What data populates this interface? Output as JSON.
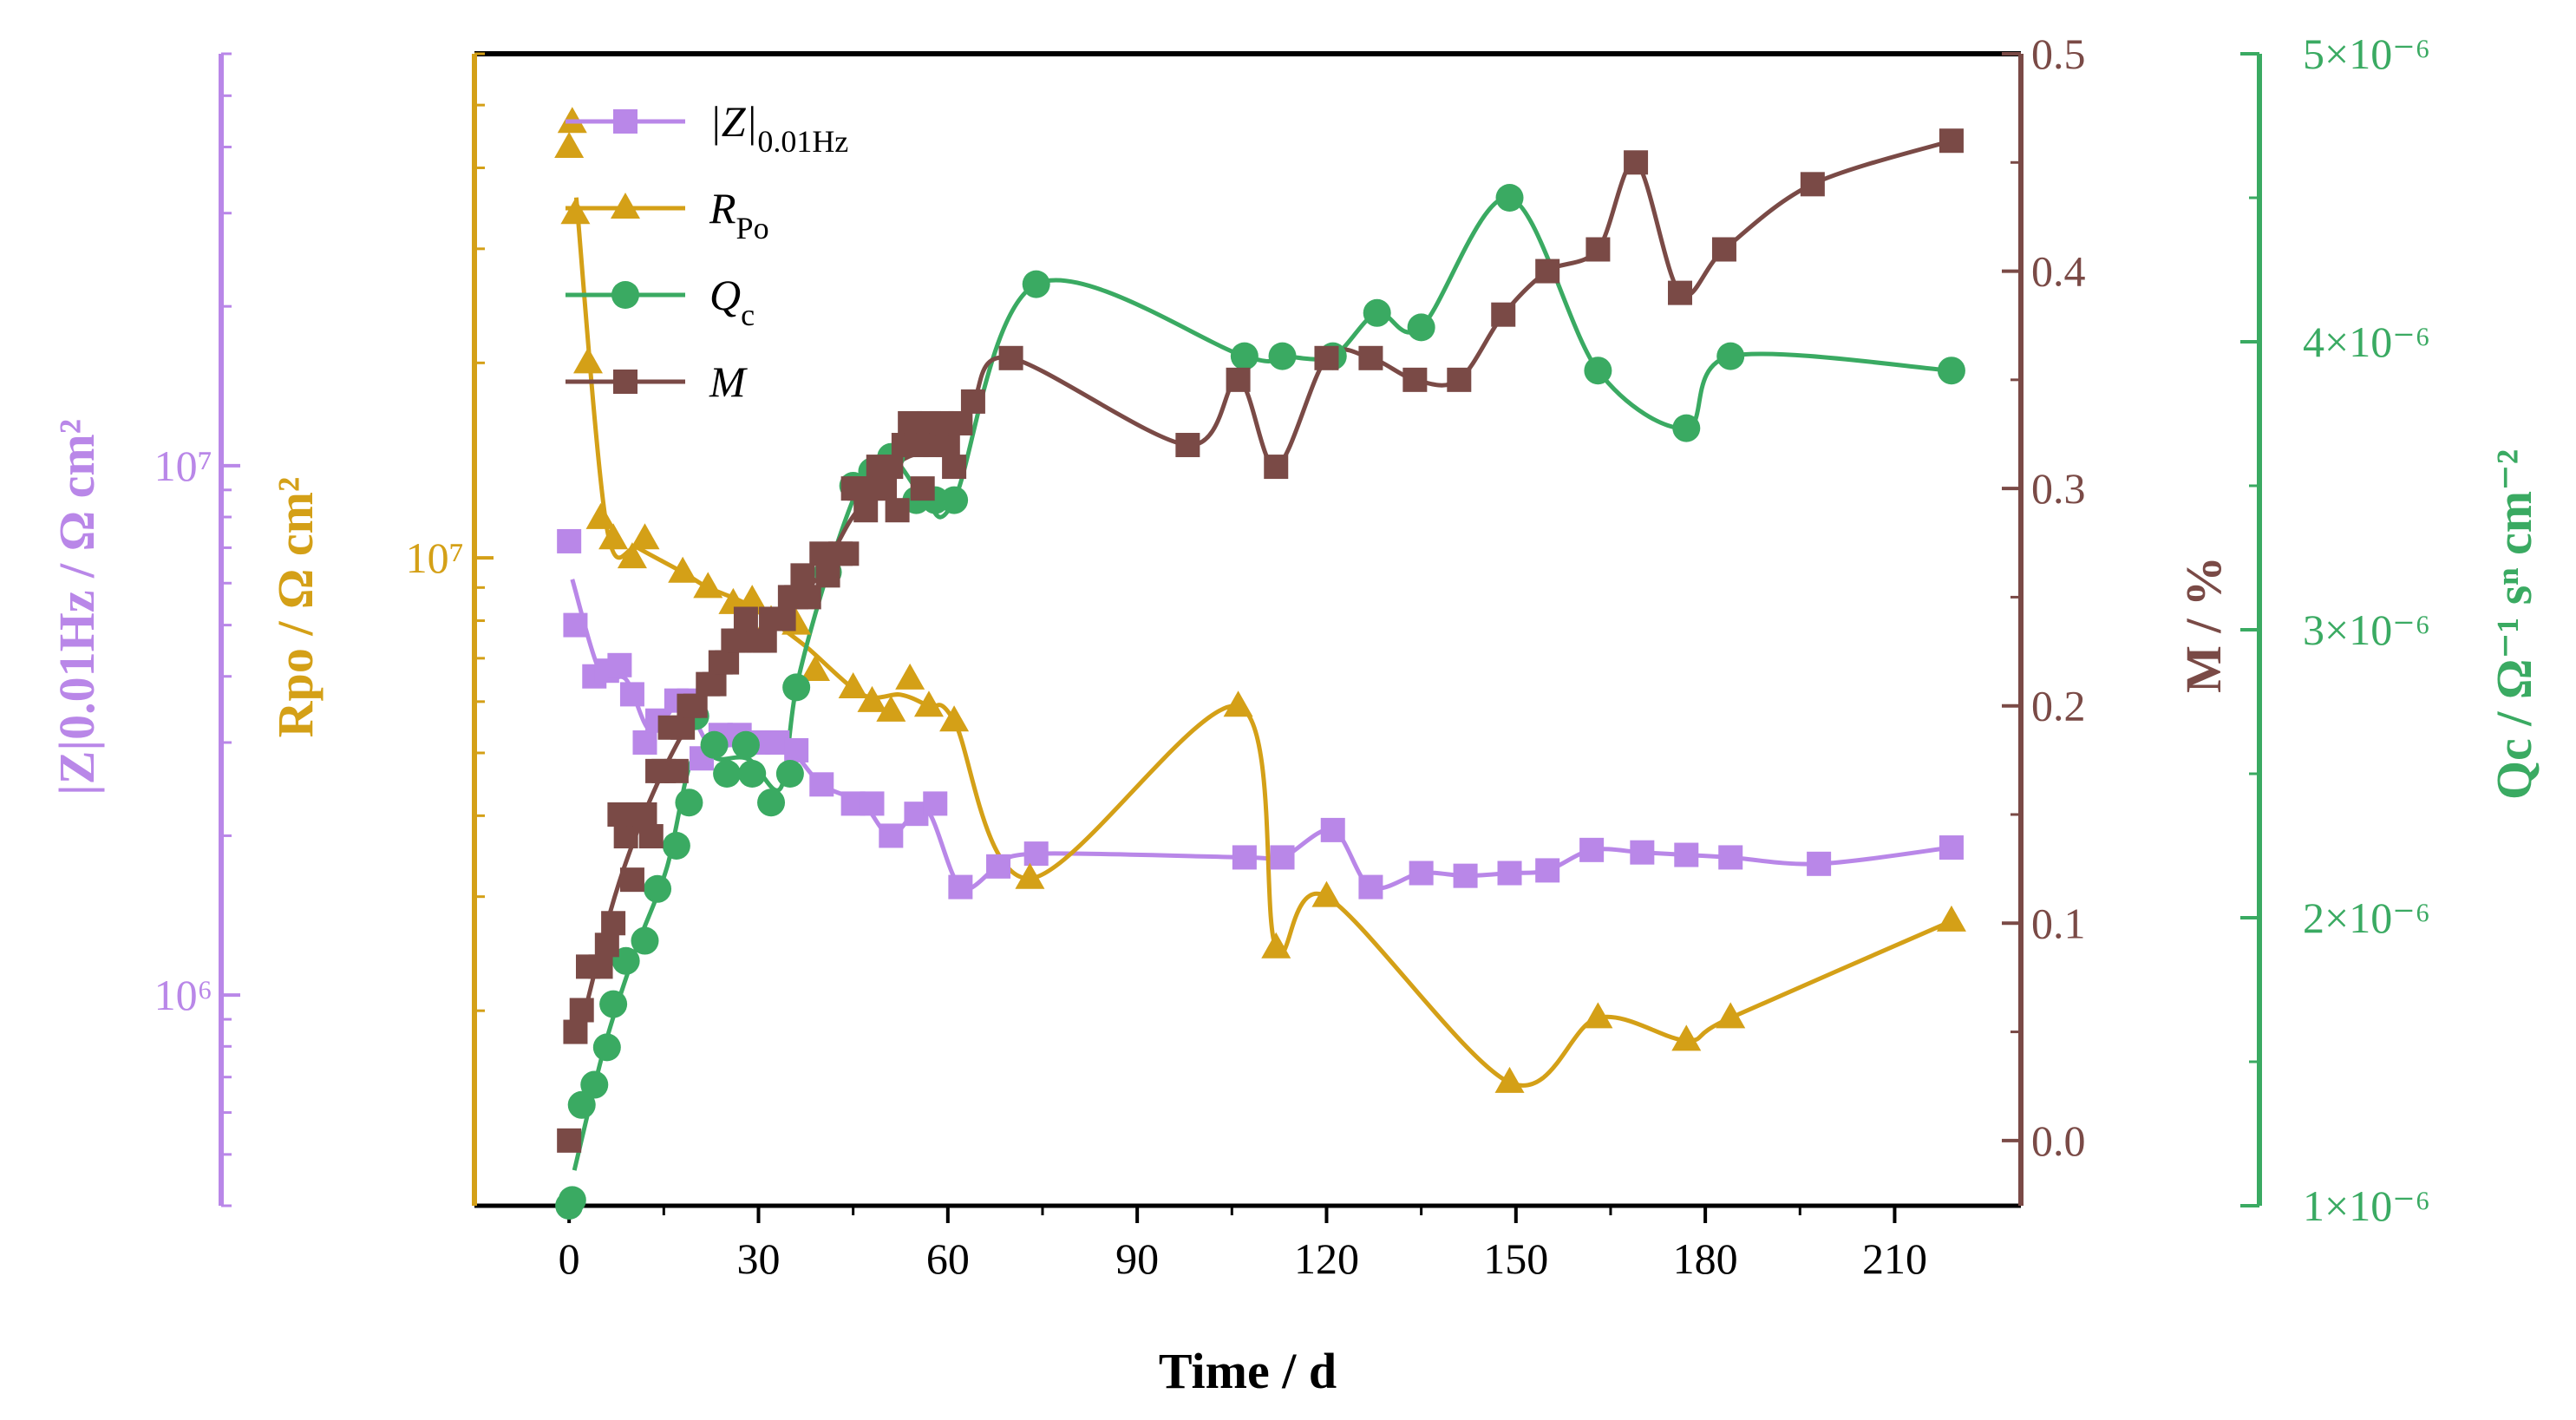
{
  "chart_data": {
    "type": "scatter",
    "xlabel": "Time / d",
    "xlim": [
      -15,
      230
    ],
    "xticks": [
      0,
      30,
      60,
      90,
      120,
      150,
      180,
      210
    ],
    "colors": {
      "Z": "#b987e8",
      "Rpo": "#d4a017",
      "Qc": "#3aaa62",
      "M": "#7a4a46"
    },
    "axes": {
      "Z": {
        "label": "|Z|0.01Hz / Ω cm²",
        "scale": "log",
        "ylim": [
          400000,
          60000000
        ],
        "major_ticks": [
          {
            "value": 1000000,
            "label": "10⁶"
          },
          {
            "value": 10000000,
            "label": "10⁷"
          }
        ]
      },
      "Rpo": {
        "label": "Rpo / Ω cm²",
        "scale": "log",
        "ylim": [
          1000000,
          60000000
        ],
        "major_ticks": [
          {
            "value": 10000000,
            "label": "10⁷"
          }
        ]
      },
      "M": {
        "label": "M / %",
        "scale": "linear",
        "ylim": [
          -0.03,
          0.5
        ],
        "major_ticks": [
          {
            "value": 0.0,
            "label": "0.0"
          },
          {
            "value": 0.1,
            "label": "0.1"
          },
          {
            "value": 0.2,
            "label": "0.2"
          },
          {
            "value": 0.3,
            "label": "0.3"
          },
          {
            "value": 0.4,
            "label": "0.4"
          },
          {
            "value": 0.5,
            "label": "0.5"
          }
        ]
      },
      "Qc": {
        "label": "Qc / Ω⁻¹ sⁿ cm⁻²",
        "scale": "linear",
        "ylim": [
          1e-06,
          5e-06
        ],
        "major_ticks": [
          {
            "value": 1e-06,
            "label": "1×10⁻⁶"
          },
          {
            "value": 2e-06,
            "label": "2×10⁻⁶"
          },
          {
            "value": 3e-06,
            "label": "3×10⁻⁶"
          },
          {
            "value": 4e-06,
            "label": "4×10⁻⁶"
          },
          {
            "value": 5e-06,
            "label": "5×10⁻⁶"
          }
        ]
      }
    },
    "legend": {
      "position": "top-left",
      "entries": [
        {
          "series": "Z",
          "main": "|Z|",
          "sub": "0.01Hz",
          "italic": "Z"
        },
        {
          "series": "Rpo",
          "main": "R",
          "sub": "Po"
        },
        {
          "series": "Qc",
          "main": "Q",
          "sub": "c"
        },
        {
          "series": "M",
          "main": "M",
          "sub": ""
        }
      ]
    },
    "series": [
      {
        "name": "|Z|0.01Hz",
        "key": "Z",
        "axis": "Z",
        "marker": "square",
        "x": [
          0,
          1,
          4,
          6,
          8,
          10,
          12,
          14,
          17,
          19,
          21,
          24,
          27,
          30,
          33,
          36,
          40,
          45,
          48,
          51,
          55,
          58,
          62,
          68,
          74,
          107,
          113,
          121,
          127,
          135,
          142,
          149,
          155,
          162,
          170,
          177,
          184,
          198,
          219
        ],
        "y": [
          7200000.0,
          5000000.0,
          4000000.0,
          4100000.0,
          4200000.0,
          3700000.0,
          3000000.0,
          3300000.0,
          3600000.0,
          3600000.0,
          2800000.0,
          3100000.0,
          3100000.0,
          3000000.0,
          3000000.0,
          2900000.0,
          2500000.0,
          2300000.0,
          2300000.0,
          2000000.0,
          2200000.0,
          2300000.0,
          1600000.0,
          1750000.0,
          1850000.0,
          1820000.0,
          1820000.0,
          2050000.0,
          1600000.0,
          1700000.0,
          1680000.0,
          1700000.0,
          1720000.0,
          1880000.0,
          1860000.0,
          1840000.0,
          1820000.0,
          1770000.0,
          1900000.0
        ]
      },
      {
        "name": "Rpo",
        "key": "Rpo",
        "axis": "Rpo",
        "marker": "triangle",
        "x": [
          0,
          0.5,
          1,
          3,
          5,
          7,
          10,
          12,
          18,
          22,
          26,
          29,
          32,
          36,
          39,
          45,
          48,
          51,
          54,
          57,
          61,
          73,
          106,
          112,
          120,
          149,
          163,
          177,
          184,
          219
        ],
        "y": [
          43000000.0,
          47000000.0,
          34000000.0,
          20000000.0,
          11500000.0,
          10700000.0,
          10000000.0,
          10700000.0,
          9500000.0,
          9000000.0,
          8500000.0,
          8600000.0,
          8000000.0,
          7900000.0,
          6700000.0,
          6300000.0,
          6000000.0,
          5800000.0,
          6500000.0,
          5900000.0,
          5600000.0,
          3200000.0,
          5900000.0,
          2500000.0,
          3000000.0,
          1550000.0,
          1950000.0,
          1800000.0,
          1950000.0,
          2750000.0
        ]
      },
      {
        "name": "Qc",
        "key": "Qc",
        "axis": "Qc",
        "marker": "circle",
        "x": [
          0,
          0.5,
          2,
          4,
          6,
          7,
          9,
          12,
          14,
          17,
          19,
          20,
          23,
          25,
          28,
          29,
          32,
          35,
          36,
          41,
          45,
          48,
          51,
          55,
          58,
          61,
          74,
          107,
          113,
          121,
          128,
          135,
          149,
          163,
          177,
          184,
          219
        ],
        "y": [
          1e-06,
          1.02e-06,
          1.35e-06,
          1.42e-06,
          1.55e-06,
          1.7e-06,
          1.85e-06,
          1.92e-06,
          2.1e-06,
          2.25e-06,
          2.4e-06,
          2.7e-06,
          2.6e-06,
          2.5e-06,
          2.6e-06,
          2.5e-06,
          2.4e-06,
          2.5e-06,
          2.8e-06,
          3.2e-06,
          3.5e-06,
          3.55e-06,
          3.6e-06,
          3.45e-06,
          3.45e-06,
          3.45e-06,
          4.2e-06,
          3.95e-06,
          3.95e-06,
          3.95e-06,
          4.1e-06,
          4.05e-06,
          4.5e-06,
          3.9e-06,
          3.7e-06,
          3.95e-06,
          3.9e-06
        ]
      },
      {
        "name": "M",
        "key": "M",
        "axis": "M",
        "marker": "square",
        "x": [
          0,
          1,
          2,
          3,
          5,
          6,
          7,
          8,
          9,
          10,
          11,
          12,
          13,
          14,
          15,
          16,
          17,
          18,
          19,
          20,
          22,
          23,
          24,
          25,
          26,
          27,
          28,
          30,
          31,
          32,
          33,
          34,
          35,
          36,
          37,
          38,
          40,
          41,
          43,
          44,
          45,
          46,
          47,
          48,
          49,
          50,
          51,
          52,
          53,
          54,
          55,
          56,
          57,
          58,
          59,
          60,
          61,
          62,
          64,
          70,
          98,
          106,
          112,
          120,
          127,
          134,
          141,
          148,
          155,
          163,
          169,
          176,
          183,
          197,
          219
        ],
        "y": [
          0.0,
          0.05,
          0.06,
          0.08,
          0.08,
          0.09,
          0.1,
          0.15,
          0.14,
          0.12,
          0.15,
          0.15,
          0.14,
          0.17,
          0.17,
          0.19,
          0.17,
          0.19,
          0.2,
          0.2,
          0.21,
          0.21,
          0.22,
          0.22,
          0.23,
          0.23,
          0.24,
          0.23,
          0.23,
          0.24,
          0.24,
          0.24,
          0.25,
          0.25,
          0.26,
          0.25,
          0.27,
          0.26,
          0.27,
          0.27,
          0.3,
          0.3,
          0.29,
          0.3,
          0.31,
          0.3,
          0.31,
          0.29,
          0.32,
          0.33,
          0.32,
          0.3,
          0.33,
          0.32,
          0.33,
          0.32,
          0.31,
          0.33,
          0.34,
          0.36,
          0.32,
          0.35,
          0.31,
          0.36,
          0.36,
          0.35,
          0.35,
          0.38,
          0.4,
          0.41,
          0.45,
          0.39,
          0.41,
          0.44,
          0.46
        ]
      }
    ]
  }
}
